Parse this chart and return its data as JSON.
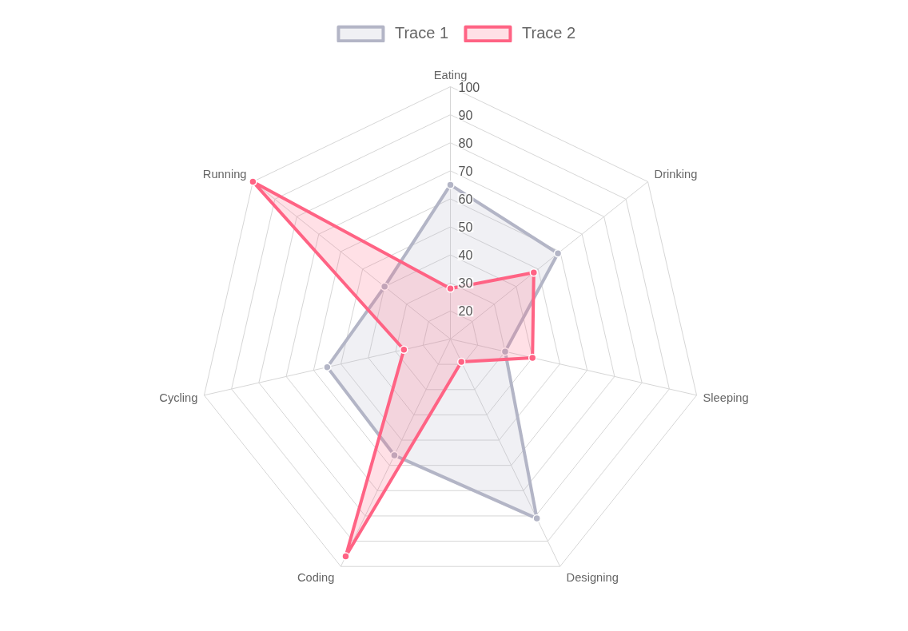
{
  "chart_data": {
    "type": "radar",
    "categories": [
      "Eating",
      "Drinking",
      "Sleeping",
      "Designing",
      "Coding",
      "Cycling",
      "Running"
    ],
    "series": [
      {
        "name": "Trace 1",
        "color": "#b3b5c6",
        "values": [
          65,
          59,
          30,
          81,
          56,
          55,
          40
        ]
      },
      {
        "name": "Trace 2",
        "color": "#ff6384",
        "values": [
          28,
          48,
          40,
          19,
          96,
          27,
          100
        ]
      }
    ],
    "ylim": [
      10,
      100
    ],
    "yticks": [
      20,
      30,
      40,
      50,
      60,
      70,
      80,
      90,
      100
    ],
    "grid": true,
    "legend": "top",
    "marker": "circle",
    "line_style": "solid"
  }
}
